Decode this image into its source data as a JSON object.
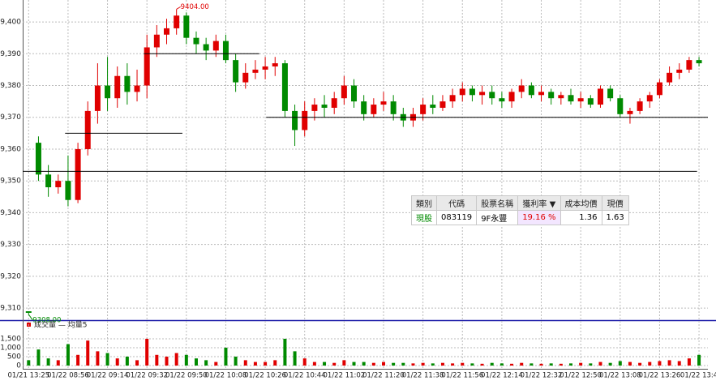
{
  "chart_data": [
    {
      "type": "candlestick",
      "up_color": "#e00000",
      "down_color": "#008a00",
      "grid": true,
      "x": [
        0,
        1,
        2,
        3,
        4,
        5,
        6,
        7,
        8,
        9,
        10,
        11,
        12,
        13,
        14,
        15,
        16,
        17,
        18,
        19,
        20,
        21,
        22,
        23,
        24,
        25,
        26,
        27,
        28,
        29,
        30,
        31,
        32,
        33,
        34,
        35,
        36,
        37,
        38,
        39,
        40,
        41,
        42,
        43,
        44,
        45,
        46,
        47,
        48,
        49,
        50,
        51,
        52,
        53,
        54,
        55,
        56,
        57,
        58,
        59,
        60,
        61,
        62,
        63,
        64,
        65,
        66,
        67,
        68
      ],
      "open": [
        9309,
        9362,
        9352,
        9348,
        9350,
        9344,
        9360,
        9372,
        9380,
        9376,
        9383,
        9378,
        9380,
        9392,
        9396,
        9398,
        9402,
        9395,
        9393,
        9391,
        9394,
        9388,
        9381,
        9384,
        9385,
        9386,
        9387,
        9372,
        9366,
        9372,
        9374,
        9373,
        9376,
        9380,
        9375,
        9371,
        9374,
        9375,
        9371,
        9369,
        9371,
        9374,
        9373,
        9375,
        9377,
        9379,
        9377,
        9378,
        9376,
        9375,
        9378,
        9380,
        9377,
        9378,
        9376,
        9377,
        9375,
        9376,
        9374,
        9379,
        9376,
        9371,
        9372,
        9375,
        9377,
        9381,
        9384,
        9385,
        9388
      ],
      "high": [
        9309,
        9364,
        9355,
        9352,
        9358,
        9362,
        9375,
        9387,
        9389,
        9386,
        9387,
        9385,
        9396,
        9399,
        9401,
        9404,
        9403,
        9397,
        9395,
        9396,
        9396,
        9390,
        9387,
        9388,
        9389,
        9389,
        9388,
        9374,
        9375,
        9376,
        9377,
        9378,
        9383,
        9382,
        9377,
        9376,
        9378,
        9377,
        9373,
        9373,
        9376,
        9377,
        9377,
        9379,
        9381,
        9380,
        9380,
        9380,
        9378,
        9379,
        9382,
        9381,
        9380,
        9379,
        9378,
        9379,
        9378,
        9377,
        9380,
        9380,
        9377,
        9373,
        9376,
        9378,
        9382,
        9386,
        9387,
        9389,
        9389
      ],
      "low": [
        9308,
        9350,
        9345,
        9346,
        9342,
        9343,
        9358,
        9368,
        9372,
        9373,
        9374,
        9375,
        9376,
        9389,
        9393,
        9396,
        9393,
        9390,
        9388,
        9389,
        9387,
        9378,
        9379,
        9382,
        9382,
        9383,
        9370,
        9361,
        9364,
        9369,
        9370,
        9371,
        9374,
        9373,
        9369,
        9370,
        9372,
        9369,
        9367,
        9367,
        9369,
        9371,
        9372,
        9373,
        9375,
        9375,
        9374,
        9374,
        9373,
        9373,
        9376,
        9376,
        9375,
        9374,
        9374,
        9374,
        9373,
        9373,
        9373,
        9375,
        9370,
        9368,
        9371,
        9373,
        9376,
        9380,
        9382,
        9384,
        9386
      ],
      "close": [
        9308.5,
        9352,
        9348,
        9350,
        9344,
        9360,
        9372,
        9380,
        9376,
        9383,
        9378,
        9380,
        9392,
        9396,
        9398,
        9402,
        9395,
        9393,
        9391,
        9394,
        9388,
        9381,
        9384,
        9385,
        9386,
        9387,
        9372,
        9366,
        9372,
        9374,
        9373,
        9376,
        9380,
        9375,
        9371,
        9374,
        9375,
        9371,
        9369,
        9371,
        9374,
        9373,
        9375,
        9377,
        9379,
        9377,
        9378,
        9376,
        9375,
        9378,
        9380,
        9377,
        9378,
        9376,
        9377,
        9375,
        9376,
        9374,
        9379,
        9376,
        9371,
        9372,
        9375,
        9377,
        9381,
        9384,
        9385,
        9388,
        9387
      ],
      "xlim": [
        -0.6,
        68.9
      ],
      "xticks": [
        {
          "value": 0,
          "label": "01/21 13:25"
        },
        {
          "value": 4,
          "label": "01/22 08:56"
        },
        {
          "value": 8,
          "label": "01/22 09:14"
        },
        {
          "value": 12,
          "label": "01/22 09:32"
        },
        {
          "value": 16,
          "label": "01/22 09:50"
        },
        {
          "value": 20,
          "label": "01/22 10:08"
        },
        {
          "value": 24,
          "label": "01/22 10:26"
        },
        {
          "value": 28,
          "label": "01/22 10:44"
        },
        {
          "value": 32,
          "label": "01/22 11:02"
        },
        {
          "value": 36,
          "label": "01/22 11:20"
        },
        {
          "value": 40,
          "label": "01/22 11:38"
        },
        {
          "value": 44,
          "label": "01/22 11:56"
        },
        {
          "value": 48,
          "label": "01/22 12:14"
        },
        {
          "value": 52,
          "label": "01/22 12:32"
        },
        {
          "value": 56,
          "label": "01/22 12:50"
        },
        {
          "value": 60,
          "label": "01/22 13:08"
        },
        {
          "value": 64,
          "label": "01/22 13:26"
        },
        {
          "value": 68,
          "label": "01/22 13:4"
        }
      ],
      "ylim": [
        9306.2,
        9406.9
      ],
      "yticks": [
        {
          "value": 9310,
          "label": "9,310"
        },
        {
          "value": 9320,
          "label": "9,320"
        },
        {
          "value": 9330,
          "label": "9,330"
        },
        {
          "value": 9340,
          "label": "9,340"
        },
        {
          "value": 9350,
          "label": "9,350"
        },
        {
          "value": 9360,
          "label": "9,360"
        },
        {
          "value": 9370,
          "label": "9,370"
        },
        {
          "value": 9380,
          "label": "9,380"
        },
        {
          "value": 9390,
          "label": "9,390"
        },
        {
          "value": 9400,
          "label": "9,400"
        }
      ],
      "annotations": [
        {
          "x": 15,
          "value": 9404,
          "label": "9404.00"
        },
        {
          "x": 0,
          "value": 9308,
          "label": "9308.00"
        }
      ],
      "lines": [
        {
          "value": 9353,
          "from": -0.6,
          "to": 67.8
        },
        {
          "value": 9365,
          "from": 3.7,
          "to": 15.6
        },
        {
          "value": 9390,
          "from": 11.7,
          "to": 23.4
        },
        {
          "value": 9370,
          "from": 24.1,
          "to": 68.9
        }
      ]
    },
    {
      "type": "bar",
      "legend": "成交量 — 均量5",
      "legend_color": "#e00000",
      "values": [
        300,
        900,
        400,
        300,
        1200,
        600,
        1400,
        800,
        700,
        400,
        500,
        300,
        1500,
        600,
        500,
        700,
        600,
        400,
        300,
        200,
        1000,
        500,
        300,
        200,
        200,
        300,
        1500,
        800,
        400,
        200,
        200,
        150,
        300,
        200,
        200,
        150,
        200,
        150,
        150,
        120,
        150,
        120,
        150,
        120,
        150,
        120,
        100,
        150,
        120,
        100,
        150,
        120,
        100,
        120,
        100,
        120,
        150,
        120,
        200,
        150,
        250,
        200,
        150,
        200,
        250,
        300,
        250,
        400,
        600
      ],
      "ylim": [
        0,
        2090
      ],
      "yticks": [
        0,
        500,
        {
          "value": 1000,
          "label": "1,000"
        },
        {
          "value": 1500,
          "label": "1,500"
        }
      ]
    }
  ],
  "table": {
    "headers": [
      "類別",
      "代碼",
      "股票名稱",
      "獲利率 ▼",
      "成本均價",
      "現價"
    ],
    "rows": [
      [
        "現股",
        "083119",
        "9F永豐",
        "19.16 %",
        "1.36",
        "1.63"
      ]
    ]
  }
}
